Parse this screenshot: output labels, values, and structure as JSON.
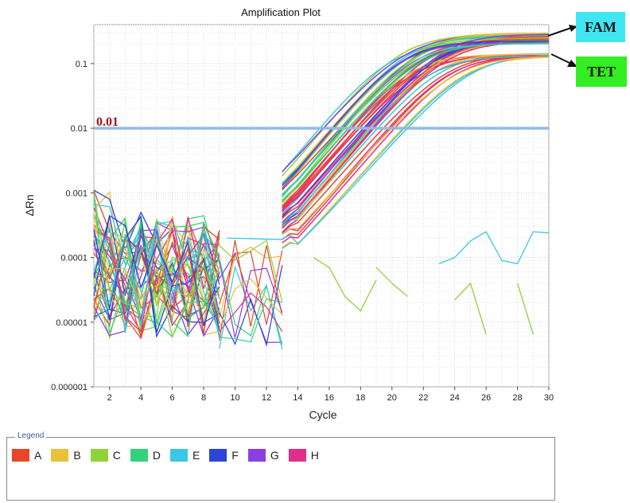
{
  "chart_data": {
    "type": "line",
    "title": "Amplification Plot",
    "xlabel": "Cycle",
    "ylabel": "ΔRn",
    "xlim": [
      1,
      30
    ],
    "ylim": [
      1e-06,
      0.4
    ],
    "yscale": "log",
    "xticks": [
      2,
      4,
      6,
      8,
      10,
      12,
      14,
      16,
      18,
      20,
      22,
      24,
      26,
      28,
      30
    ],
    "yticks": [
      {
        "value": 1e-06,
        "label": "0.000001"
      },
      {
        "value": 1e-05,
        "label": "0.00001"
      },
      {
        "value": 0.0001,
        "label": "0.0001"
      },
      {
        "value": 0.001,
        "label": "0.001"
      },
      {
        "value": 0.01,
        "label": "0.01"
      },
      {
        "value": 0.1,
        "label": "0.1"
      }
    ],
    "grid": true,
    "threshold": {
      "value": 0.01,
      "label": "0.01",
      "color": "#8fbce6"
    },
    "legend": {
      "title": "Legend",
      "position": "bottom",
      "items": [
        {
          "label": "A",
          "color": "#e8462a"
        },
        {
          "label": "B",
          "color": "#e9c23a"
        },
        {
          "label": "C",
          "color": "#8fd23a"
        },
        {
          "label": "D",
          "color": "#34d27a"
        },
        {
          "label": "E",
          "color": "#3cc7e4"
        },
        {
          "label": "F",
          "color": "#2c45d6"
        },
        {
          "label": "G",
          "color": "#8a3fe0"
        },
        {
          "label": "H",
          "color": "#e02e8a"
        }
      ]
    },
    "annotations": [
      {
        "label": "FAM",
        "color": "#3fe6f2",
        "points_to": 0.27
      },
      {
        "label": "TET",
        "color": "#33ee22",
        "points_to": 0.14
      }
    ],
    "series_groups": [
      {
        "group": "FAM",
        "plateau_range": [
          0.2,
          0.3
        ],
        "threshold_crossing_cycles": [
          15.4,
          18.9
        ]
      },
      {
        "group": "TET",
        "plateau_range": [
          0.12,
          0.15
        ],
        "threshold_crossing_cycles": [
          17.2,
          21.0
        ]
      }
    ],
    "baseline_noise_range": [
      1e-06,
      0.0012
    ]
  }
}
